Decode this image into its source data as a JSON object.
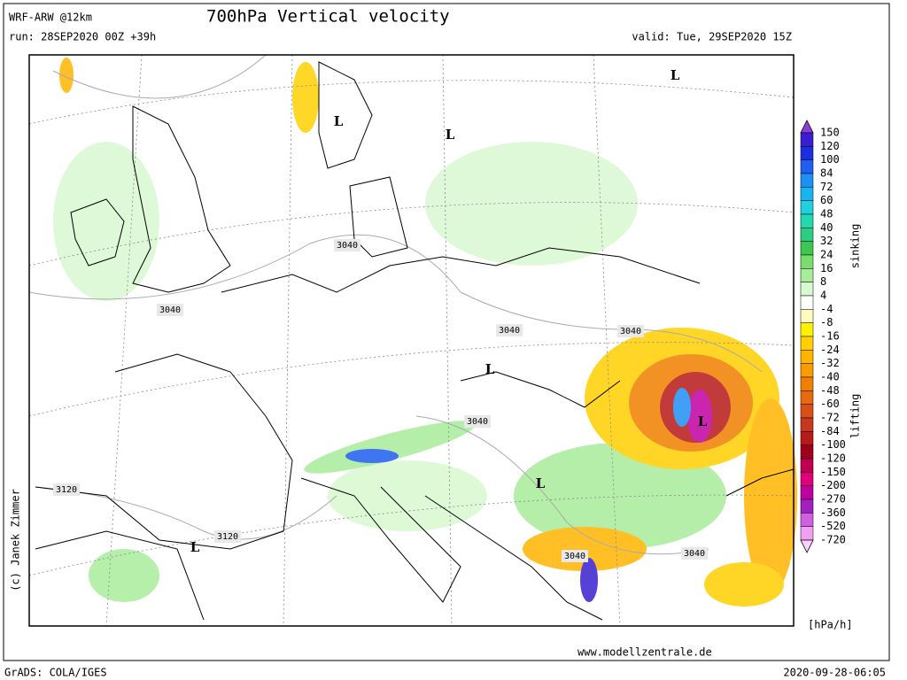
{
  "header": {
    "model": "WRF-ARW @12km",
    "title": "700hPa Vertical velocity",
    "run": "run: 28SEP2020 00Z +39h",
    "valid": "valid: Tue, 29SEP2020 15Z"
  },
  "legend": {
    "levels": [
      "150",
      "120",
      "100",
      "84",
      "72",
      "60",
      "48",
      "40",
      "32",
      "24",
      "16",
      "8",
      "4",
      "-4",
      "-8",
      "-16",
      "-24",
      "-32",
      "-40",
      "-48",
      "-60",
      "-72",
      "-84",
      "-100",
      "-120",
      "-150",
      "-200",
      "-270",
      "-360",
      "-520",
      "-720"
    ],
    "colors": [
      "#8c3fd8",
      "#3a1fd0",
      "#1c2fe0",
      "#1e5ef0",
      "#1e90f5",
      "#17b4f0",
      "#1fd0e0",
      "#22d8b0",
      "#2ecc80",
      "#3cc850",
      "#78dc6e",
      "#a8ec9a",
      "#d8f8d0",
      "#ffffff",
      "#fffac0",
      "#fff000",
      "#ffd000",
      "#ffb400",
      "#f89c00",
      "#f08000",
      "#e86a10",
      "#d85018",
      "#c83820",
      "#b81a1a",
      "#a0001a",
      "#c00050",
      "#e0007a",
      "#c000a0",
      "#a020c0",
      "#d060e0",
      "#f0a0f0",
      "#ffd0ff"
    ],
    "sinking": "sinking",
    "lifting": "lifting",
    "unit": "[hPa/h]"
  },
  "contour_labels": [
    "3040",
    "3040",
    "3040",
    "3040",
    "3040",
    "3040",
    "3040",
    "3120",
    "3120"
  ],
  "lows": [
    "L",
    "L",
    "L",
    "L",
    "L",
    "L",
    "L"
  ],
  "credits": {
    "copyright": "(c) Janek Zimmer",
    "website": "www.modellzentrale.de",
    "software": "GrADS: COLA/IGES",
    "timestamp": "2020-09-28-06:05"
  }
}
